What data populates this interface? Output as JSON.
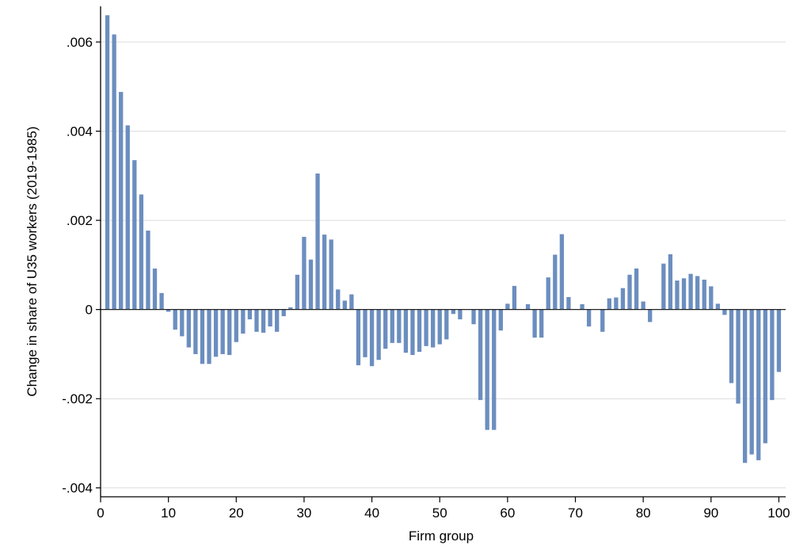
{
  "chart_data": {
    "type": "bar",
    "title": "",
    "xlabel": "Firm group",
    "ylabel": "Change in share of U35 workers (2019-1985)",
    "xlim": [
      0,
      101
    ],
    "ylim": [
      -0.0042,
      0.0068
    ],
    "xticks": [
      0,
      10,
      20,
      30,
      40,
      50,
      60,
      70,
      80,
      90,
      100
    ],
    "xtick_labels": [
      "0",
      "10",
      "20",
      "30",
      "40",
      "50",
      "60",
      "70",
      "80",
      "90",
      "100"
    ],
    "yticks": [
      0.006,
      0.004,
      0.002,
      0,
      -0.002,
      -0.004
    ],
    "ytick_labels": [
      ".006",
      ".004",
      ".002",
      "0",
      "-.002",
      "-.004"
    ],
    "grid": true,
    "bar_color": "#6c8ebf",
    "x": [
      1,
      2,
      3,
      4,
      5,
      6,
      7,
      8,
      9,
      10,
      11,
      12,
      13,
      14,
      15,
      16,
      17,
      18,
      19,
      20,
      21,
      22,
      23,
      24,
      25,
      26,
      27,
      28,
      29,
      30,
      31,
      32,
      33,
      34,
      35,
      36,
      37,
      38,
      39,
      40,
      41,
      42,
      43,
      44,
      45,
      46,
      47,
      48,
      49,
      50,
      51,
      52,
      53,
      54,
      55,
      56,
      57,
      58,
      59,
      60,
      61,
      62,
      63,
      64,
      65,
      66,
      67,
      68,
      69,
      70,
      71,
      72,
      73,
      74,
      75,
      76,
      77,
      78,
      79,
      80,
      81,
      82,
      83,
      84,
      85,
      86,
      87,
      88,
      89,
      90,
      91,
      92,
      93,
      94,
      95,
      96,
      97,
      98,
      99,
      100
    ],
    "values": [
      0.0066,
      0.00617,
      0.00488,
      0.00413,
      0.00335,
      0.00258,
      0.00177,
      0.00092,
      0.00037,
      -5e-05,
      -0.00045,
      -0.0006,
      -0.00085,
      -0.001,
      -0.00122,
      -0.00122,
      -0.00106,
      -0.001,
      -0.00102,
      -0.00073,
      -0.00054,
      -0.00022,
      -0.0005,
      -0.00052,
      -0.00038,
      -0.0005,
      -0.00015,
      5e-05,
      0.00078,
      0.00163,
      0.00112,
      0.00305,
      0.00168,
      0.00157,
      0.00045,
      0.0002,
      0.00034,
      -0.00125,
      -0.00107,
      -0.00127,
      -0.00113,
      -0.00088,
      -0.00075,
      -0.00075,
      -0.00097,
      -0.00102,
      -0.00095,
      -0.00082,
      -0.00085,
      -0.00078,
      -0.00067,
      -0.0001,
      -0.00022,
      0,
      -0.00033,
      -0.00203,
      -0.0027,
      -0.0027,
      -0.00047,
      0.00013,
      0.00053,
      0,
      0.00012,
      -0.00063,
      -0.00063,
      0.00072,
      0.00123,
      0.00169,
      0.00028,
      0,
      0.00012,
      -0.00038,
      0,
      -0.0005,
      0.00025,
      0.00027,
      0.00048,
      0.00078,
      0.00092,
      0.00018,
      -0.00028,
      0,
      0.00103,
      0.00124,
      0.00065,
      0.0007,
      0.0008,
      0.00075,
      0.00067,
      0.00052,
      0.00013,
      -0.00012,
      -0.00165,
      -0.00211,
      -0.00344,
      -0.00325,
      -0.00338,
      -0.003,
      -0.00203,
      -0.0014
    ]
  }
}
